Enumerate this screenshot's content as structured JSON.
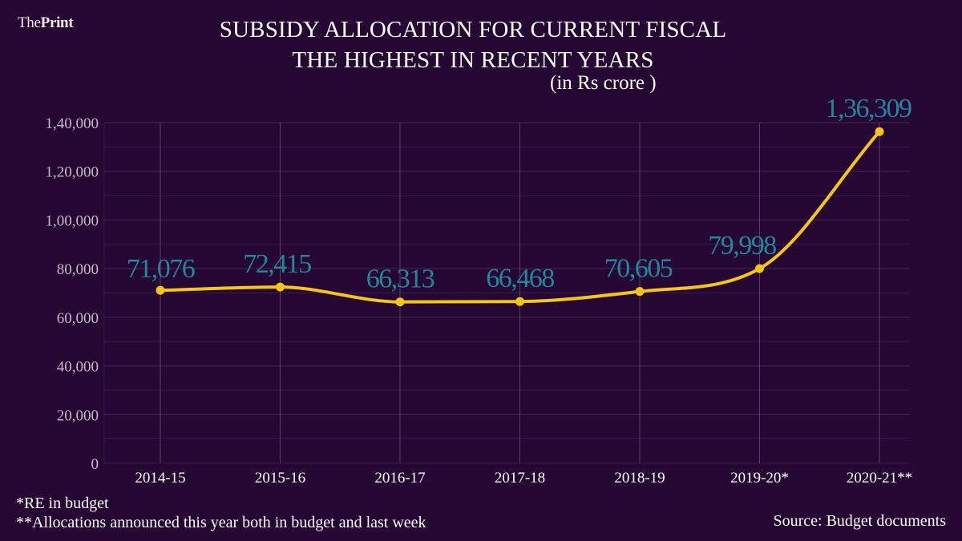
{
  "brand": {
    "prefix": "The",
    "name": "Print"
  },
  "header": {
    "title_line1": "SUBSIDY ALLOCATION FOR CURRENT FISCAL",
    "title_line2": "THE HIGHEST IN RECENT YEARS",
    "unit": "(in Rs crore )"
  },
  "footer": {
    "note1": "*RE in budget",
    "note2": "**Allocations announced this year both in budget and last week",
    "source": "Source: Budget documents"
  },
  "colors": {
    "background": "#260633",
    "line": "#f5c518",
    "data_label": "#23869a",
    "grid": "#4a2a57"
  },
  "chart_data": {
    "type": "line",
    "title": "SUBSIDY ALLOCATION FOR CURRENT FISCAL THE HIGHEST IN RECENT YEARS",
    "subtitle": "(in Rs crore )",
    "xlabel": "",
    "ylabel": "",
    "categories": [
      "2014-15",
      "2015-16",
      "2016-17",
      "2017-18",
      "2018-19",
      "2019-20*",
      "2020-21**"
    ],
    "series": [
      {
        "name": "Subsidy allocation",
        "values": [
          71076,
          72415,
          66313,
          66468,
          70605,
          79998,
          136309
        ]
      }
    ],
    "data_labels": [
      "71,076",
      "72,415",
      "66,313",
      "66,468",
      "70,605",
      "79,998",
      "1,36,309"
    ],
    "ylim": [
      0,
      140000
    ],
    "yticks": [
      0,
      20000,
      40000,
      60000,
      80000,
      100000,
      120000,
      140000
    ],
    "ytick_labels": [
      "0",
      "20,000",
      "40,000",
      "60,000",
      "80,000",
      "1,00,000",
      "1,20,000",
      "1,40,000"
    ],
    "minor_grid_step": 10000,
    "grid": true,
    "smooth": true,
    "legend": "none"
  }
}
